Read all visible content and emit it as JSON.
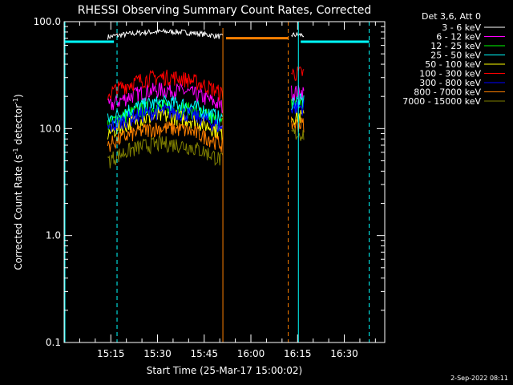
{
  "chart_data": {
    "type": "line",
    "title": "RHESSI Observing Summary Count Rates, Corrected",
    "xlabel": "Start Time (25-Mar-17 15:00:02)",
    "ylabel_prefix": "Corrected Count Rate (s",
    "ylabel_sup": "-1",
    "ylabel_mid": " detector",
    "ylabel_suffix": ")",
    "y_scale": "log",
    "ylim": [
      0.1,
      100.0
    ],
    "xlim_minutes": [
      0,
      103
    ],
    "y_ticks": [
      {
        "v": 0.1,
        "label": "0.1"
      },
      {
        "v": 1.0,
        "label": "1.0"
      },
      {
        "v": 10.0,
        "label": "10.0"
      },
      {
        "v": 100.0,
        "label": "100.0"
      }
    ],
    "x_ticks": [
      {
        "v": 15,
        "label": "15:15"
      },
      {
        "v": 30,
        "label": "15:30"
      },
      {
        "v": 45,
        "label": "15:45"
      },
      {
        "v": 60,
        "label": "16:00"
      },
      {
        "v": 75,
        "label": "16:15"
      },
      {
        "v": 90,
        "label": "16:30"
      }
    ],
    "legend_title": "Det 3,6, Att 0",
    "legend_placement": "right",
    "series": [
      {
        "name": "3 - 6 keV",
        "color": "#ffffff",
        "base": 72,
        "amp": 0.12,
        "post": 75,
        "start": 14,
        "end": 51
      },
      {
        "name": "6 - 12 keV",
        "color": "#ff00ff",
        "base": 16,
        "amp": 0.45,
        "post": 22,
        "start": 14,
        "end": 51
      },
      {
        "name": "12 - 25 keV",
        "color": "#00ff00",
        "base": 11,
        "amp": 0.45,
        "post": 17,
        "start": 14,
        "end": 51
      },
      {
        "name": "25 - 50 keV",
        "color": "#00ffff",
        "base": 12,
        "amp": 0.45,
        "post": 18,
        "start": 14,
        "end": 51
      },
      {
        "name": "50 - 100 keV",
        "color": "#ffff00",
        "base": 9,
        "amp": 0.45,
        "post": 13,
        "start": 14,
        "end": 51
      },
      {
        "name": "100 - 300 keV",
        "color": "#ff0000",
        "base": 21,
        "amp": 0.45,
        "post": 33,
        "start": 14,
        "end": 51
      },
      {
        "name": "300 - 800 keV",
        "color": "#0000ff",
        "base": 10,
        "amp": 0.45,
        "post": 16,
        "start": 14,
        "end": 51
      },
      {
        "name": "800 - 7000 keV",
        "color": "#ff8000",
        "base": 7,
        "amp": 0.45,
        "post": 11,
        "start": 14,
        "end": 51
      },
      {
        "name": "7000 - 15000 keV",
        "color": "#808000",
        "base": 5,
        "amp": 0.45,
        "post": 9,
        "start": 14,
        "end": 51
      }
    ],
    "post_segment": {
      "start": 73,
      "end": 77
    },
    "cyan_dashed_x": [
      17,
      98
    ],
    "cyan_solid_x": [
      0,
      75
    ],
    "orange_dashed_x": [
      72
    ],
    "orange_solid_x": [
      51
    ],
    "orange_flag_level": 70,
    "orange_flag_range": [
      52,
      72
    ],
    "cyan_flag_level": 65,
    "cyan_flag_ranges": [
      [
        0,
        16
      ],
      [
        76,
        98
      ]
    ]
  },
  "footer": {
    "date": "2-Sep-2022 08:11"
  }
}
